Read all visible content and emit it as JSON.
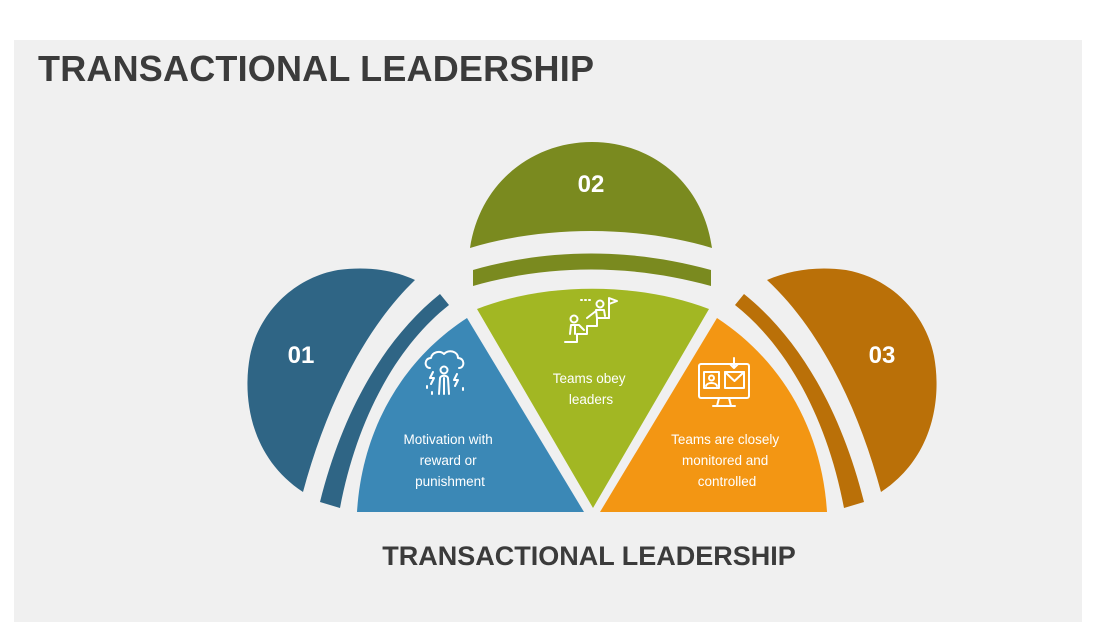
{
  "title": "TRANSACTIONAL LEADERSHIP",
  "subtitle": "TRANSACTIONAL LEADERSHIP",
  "colors": {
    "blue_dark": "#2f6585",
    "blue_light": "#3b88b6",
    "green_dark": "#7a8a1f",
    "green_light": "#a2b723",
    "orange_dark": "#ba7008",
    "orange_light": "#f39613",
    "background": "#f0f0f0",
    "text": "#3b3b3b"
  },
  "items": [
    {
      "number": "01",
      "icon": "storm-cloud-person-icon",
      "lines": [
        "Motivation with",
        "reward or",
        "punishment"
      ]
    },
    {
      "number": "02",
      "icon": "climbing-stairs-flag-icon",
      "lines": [
        "Teams obey",
        "leaders"
      ]
    },
    {
      "number": "03",
      "icon": "monitor-surveillance-icon",
      "lines": [
        "Teams are closely",
        "monitored and",
        "controlled"
      ]
    }
  ]
}
